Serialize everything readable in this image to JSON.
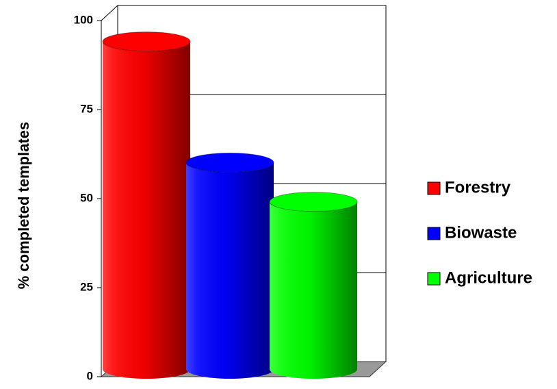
{
  "chart_data": {
    "type": "bar",
    "y_label": "% completed templates",
    "series": [
      {
        "name": "Forestry",
        "color": "#ff0000",
        "values": [
          92
        ]
      },
      {
        "name": "Biowaste",
        "color": "#0000ff",
        "values": [
          58
        ]
      },
      {
        "name": "Agriculture",
        "color": "#00ff00",
        "values": [
          47
        ]
      }
    ],
    "ylim": [
      0,
      100
    ],
    "yticks": [
      0,
      25,
      50,
      75,
      100
    ],
    "grid": true,
    "legend": "right"
  }
}
